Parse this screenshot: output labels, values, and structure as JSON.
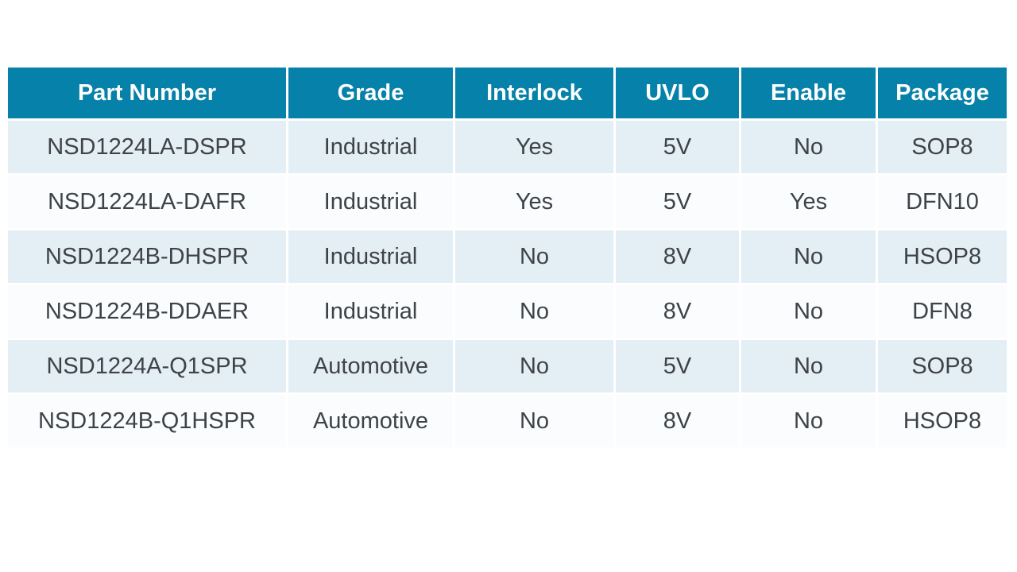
{
  "table": {
    "headers": [
      "Part Number",
      "Grade",
      "Interlock",
      "UVLO",
      "Enable",
      "Package"
    ],
    "column_keys": [
      "part-number",
      "grade",
      "interlock",
      "uvlo",
      "enable",
      "package"
    ],
    "rows": [
      [
        "NSD1224LA-DSPR",
        "Industrial",
        "Yes",
        "5V",
        "No",
        "SOP8"
      ],
      [
        "NSD1224LA-DAFR",
        "Industrial",
        "Yes",
        "5V",
        "Yes",
        "DFN10"
      ],
      [
        "NSD1224B-DHSPR",
        "Industrial",
        "No",
        "8V",
        "No",
        "HSOP8"
      ],
      [
        "NSD1224B-DDAER",
        "Industrial",
        "No",
        "8V",
        "No",
        "DFN8"
      ],
      [
        "NSD1224A-Q1SPR",
        "Automotive",
        "No",
        "5V",
        "No",
        "SOP8"
      ],
      [
        "NSD1224B-Q1HSPR",
        "Automotive",
        "No",
        "8V",
        "No",
        "HSOP8"
      ]
    ],
    "colors": {
      "header_bg": "#0681a9",
      "header_text": "#ffffff",
      "row_odd_bg": "#e4eef5",
      "row_even_bg": "#fafcfe",
      "cell_text": "#3e4347",
      "gridline": "#ffffff"
    }
  }
}
